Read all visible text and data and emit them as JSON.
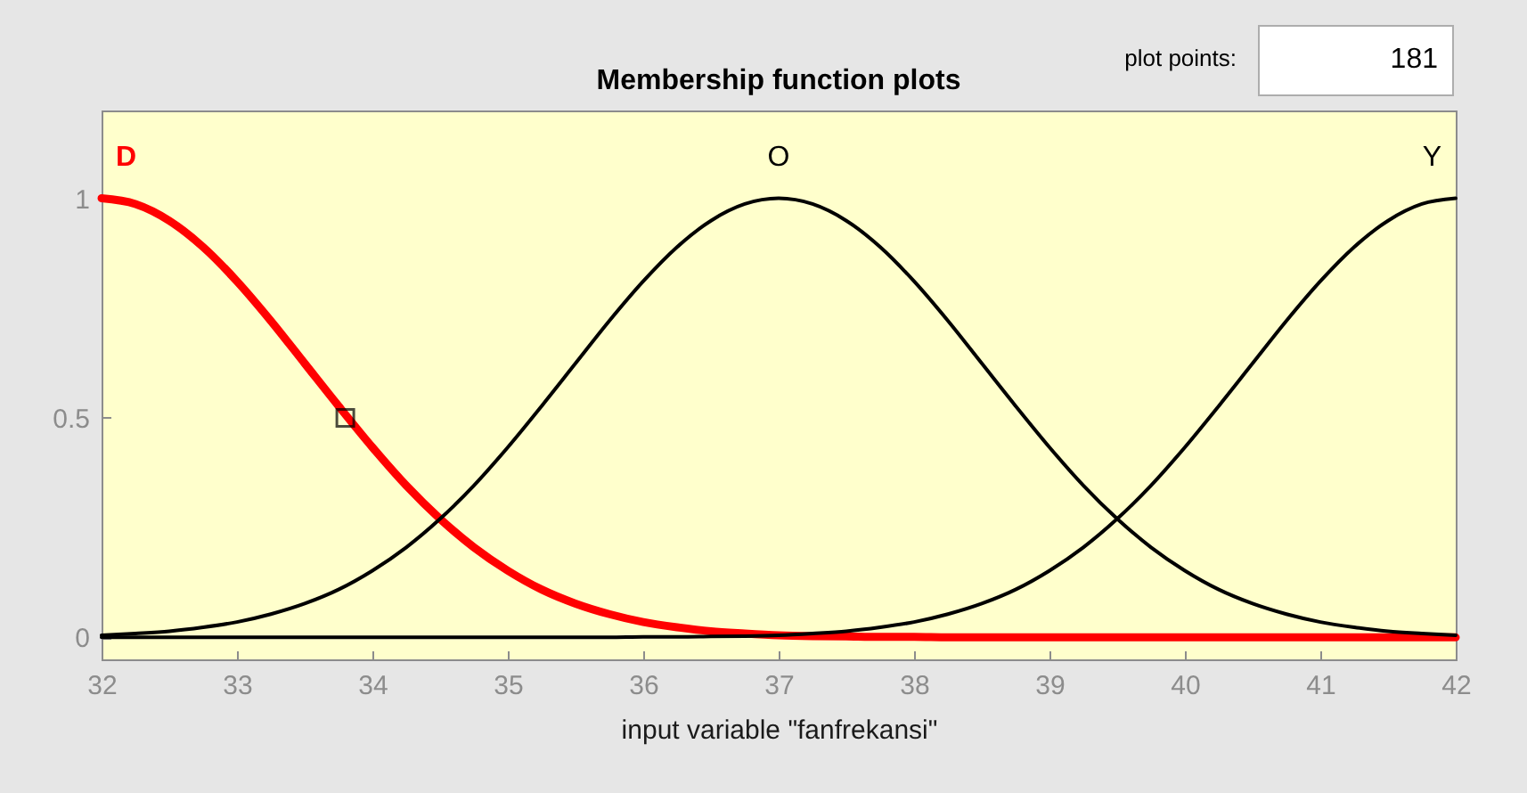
{
  "chart_data": {
    "type": "line",
    "title": "Membership function plots",
    "xlabel": "input variable \"fanfrekansi\"",
    "annotations": [
      "plot points:",
      "181"
    ],
    "x": [
      32,
      32.25,
      32.5,
      32.75,
      33,
      33.25,
      33.5,
      33.75,
      34,
      34.25,
      34.5,
      34.75,
      35,
      35.25,
      35.5,
      35.75,
      36,
      36.25,
      36.5,
      36.75,
      37,
      37.25,
      37.5,
      37.75,
      38,
      38.25,
      38.5,
      38.75,
      39,
      39.25,
      39.5,
      39.75,
      40,
      40.25,
      40.5,
      40.75,
      41,
      41.25,
      41.5,
      41.75,
      42
    ],
    "series": [
      {
        "name": "D",
        "color": "#ff0000",
        "values": [
          1,
          0.987,
          0.949,
          0.889,
          0.811,
          0.721,
          0.624,
          0.527,
          0.433,
          0.346,
          0.27,
          0.205,
          0.152,
          0.109,
          0.077,
          0.053,
          0.035,
          0.023,
          0.014,
          0.009,
          0.005,
          0.003,
          0.002,
          0.001,
          0.001,
          0,
          0,
          0,
          0,
          0,
          0,
          0,
          0,
          0,
          0,
          0,
          0,
          0,
          0,
          0,
          0
        ]
      },
      {
        "name": "O",
        "color": "#000000",
        "values": [
          0.005,
          0.009,
          0.014,
          0.023,
          0.035,
          0.053,
          0.077,
          0.109,
          0.152,
          0.205,
          0.27,
          0.346,
          0.433,
          0.527,
          0.624,
          0.721,
          0.811,
          0.889,
          0.949,
          0.987,
          1,
          0.987,
          0.949,
          0.889,
          0.811,
          0.721,
          0.624,
          0.527,
          0.433,
          0.346,
          0.27,
          0.205,
          0.152,
          0.109,
          0.077,
          0.053,
          0.035,
          0.023,
          0.014,
          0.009,
          0.005
        ]
      },
      {
        "name": "Y",
        "color": "#000000",
        "values": [
          0,
          0,
          0,
          0,
          0,
          0,
          0,
          0,
          0,
          0,
          0,
          0,
          0,
          0,
          0,
          0,
          0.001,
          0.001,
          0.002,
          0.003,
          0.005,
          0.009,
          0.014,
          0.023,
          0.035,
          0.053,
          0.077,
          0.109,
          0.152,
          0.205,
          0.27,
          0.346,
          0.433,
          0.527,
          0.624,
          0.721,
          0.811,
          0.889,
          0.949,
          0.987,
          1
        ]
      },
      {
        "type": "scatter",
        "x": [
          33.8
        ],
        "values": [
          0.5
        ],
        "color": "#000000",
        "marker": "square"
      }
    ],
    "xlim": [
      32,
      42
    ],
    "xticks": [
      32,
      33,
      34,
      35,
      36,
      37,
      38,
      39,
      40,
      41,
      42
    ],
    "ylim": [
      -0.05,
      1.2
    ],
    "yticks": [
      0,
      0.5,
      1
    ]
  }
}
